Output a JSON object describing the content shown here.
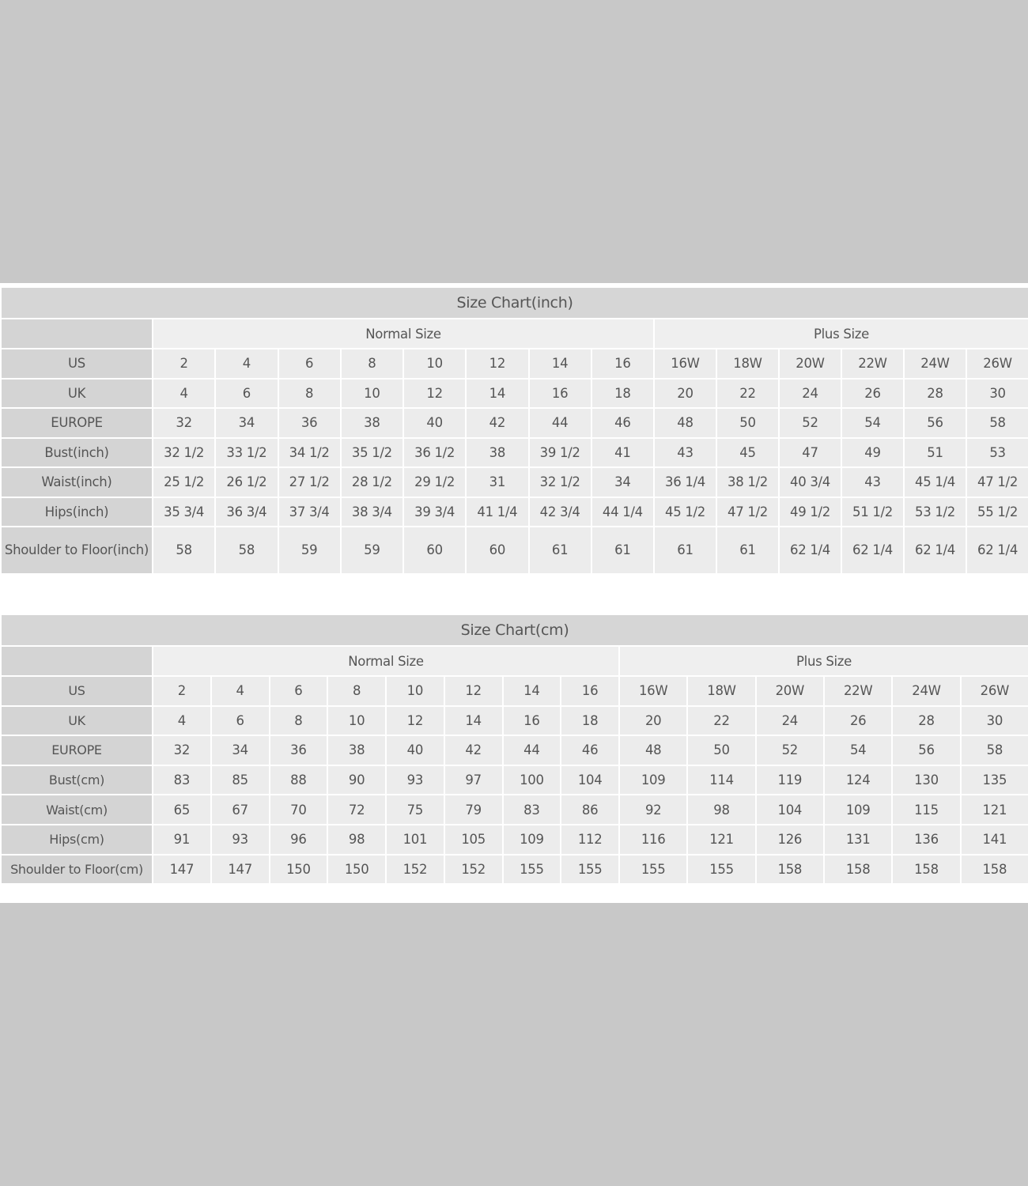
{
  "colors": {
    "background": "#c8c8c8",
    "title_band": "#d6d6d6",
    "label_column": "#d4d4d4",
    "cell": "#ececec",
    "text": "#555555"
  },
  "tables": [
    {
      "id": "inch",
      "title": "Size Chart(inch)",
      "groups": [
        {
          "label": "Normal Size",
          "span": 8
        },
        {
          "label": "Plus Size",
          "span": 6
        }
      ],
      "rows": [
        {
          "label": "US",
          "values": [
            "2",
            "4",
            "6",
            "8",
            "10",
            "12",
            "14",
            "16",
            "16W",
            "18W",
            "20W",
            "22W",
            "24W",
            "26W"
          ]
        },
        {
          "label": "UK",
          "values": [
            "4",
            "6",
            "8",
            "10",
            "12",
            "14",
            "16",
            "18",
            "20",
            "22",
            "24",
            "26",
            "28",
            "30"
          ]
        },
        {
          "label": "EUROPE",
          "values": [
            "32",
            "34",
            "36",
            "38",
            "40",
            "42",
            "44",
            "46",
            "48",
            "50",
            "52",
            "54",
            "56",
            "58"
          ]
        },
        {
          "label": "Bust(inch)",
          "values": [
            "32 1/2",
            "33 1/2",
            "34 1/2",
            "35 1/2",
            "36 1/2",
            "38",
            "39 1/2",
            "41",
            "43",
            "45",
            "47",
            "49",
            "51",
            "53"
          ]
        },
        {
          "label": "Waist(inch)",
          "values": [
            "25 1/2",
            "26 1/2",
            "27 1/2",
            "28 1/2",
            "29 1/2",
            "31",
            "32 1/2",
            "34",
            "36 1/4",
            "38 1/2",
            "40 3/4",
            "43",
            "45 1/4",
            "47 1/2"
          ]
        },
        {
          "label": "Hips(inch)",
          "values": [
            "35 3/4",
            "36 3/4",
            "37 3/4",
            "38 3/4",
            "39 3/4",
            "41 1/4",
            "42 3/4",
            "44 1/4",
            "45 1/2",
            "47 1/2",
            "49 1/2",
            "51 1/2",
            "53 1/2",
            "55 1/2"
          ]
        },
        {
          "label": "Shoulder to Floor(inch)",
          "values": [
            "58",
            "58",
            "59",
            "59",
            "60",
            "60",
            "61",
            "61",
            "61",
            "61",
            "62 1/4",
            "62 1/4",
            "62 1/4",
            "62 1/4"
          ]
        }
      ]
    },
    {
      "id": "cm",
      "title": "Size Chart(cm)",
      "groups": [
        {
          "label": "Normal Size",
          "span": 8
        },
        {
          "label": "Plus Size",
          "span": 6
        }
      ],
      "rows": [
        {
          "label": "US",
          "values": [
            "2",
            "4",
            "6",
            "8",
            "10",
            "12",
            "14",
            "16",
            "16W",
            "18W",
            "20W",
            "22W",
            "24W",
            "26W"
          ]
        },
        {
          "label": "UK",
          "values": [
            "4",
            "6",
            "8",
            "10",
            "12",
            "14",
            "16",
            "18",
            "20",
            "22",
            "24",
            "26",
            "28",
            "30"
          ]
        },
        {
          "label": "EUROPE",
          "values": [
            "32",
            "34",
            "36",
            "38",
            "40",
            "42",
            "44",
            "46",
            "48",
            "50",
            "52",
            "54",
            "56",
            "58"
          ]
        },
        {
          "label": "Bust(cm)",
          "values": [
            "83",
            "85",
            "88",
            "90",
            "93",
            "97",
            "100",
            "104",
            "109",
            "114",
            "119",
            "124",
            "130",
            "135"
          ]
        },
        {
          "label": "Waist(cm)",
          "values": [
            "65",
            "67",
            "70",
            "72",
            "75",
            "79",
            "83",
            "86",
            "92",
            "98",
            "104",
            "109",
            "115",
            "121"
          ]
        },
        {
          "label": "Hips(cm)",
          "values": [
            "91",
            "93",
            "96",
            "98",
            "101",
            "105",
            "109",
            "112",
            "116",
            "121",
            "126",
            "131",
            "136",
            "141"
          ]
        },
        {
          "label": "Shoulder to Floor(cm)",
          "values": [
            "147",
            "147",
            "150",
            "150",
            "152",
            "152",
            "155",
            "155",
            "155",
            "155",
            "158",
            "158",
            "158",
            "158"
          ]
        }
      ]
    }
  ]
}
